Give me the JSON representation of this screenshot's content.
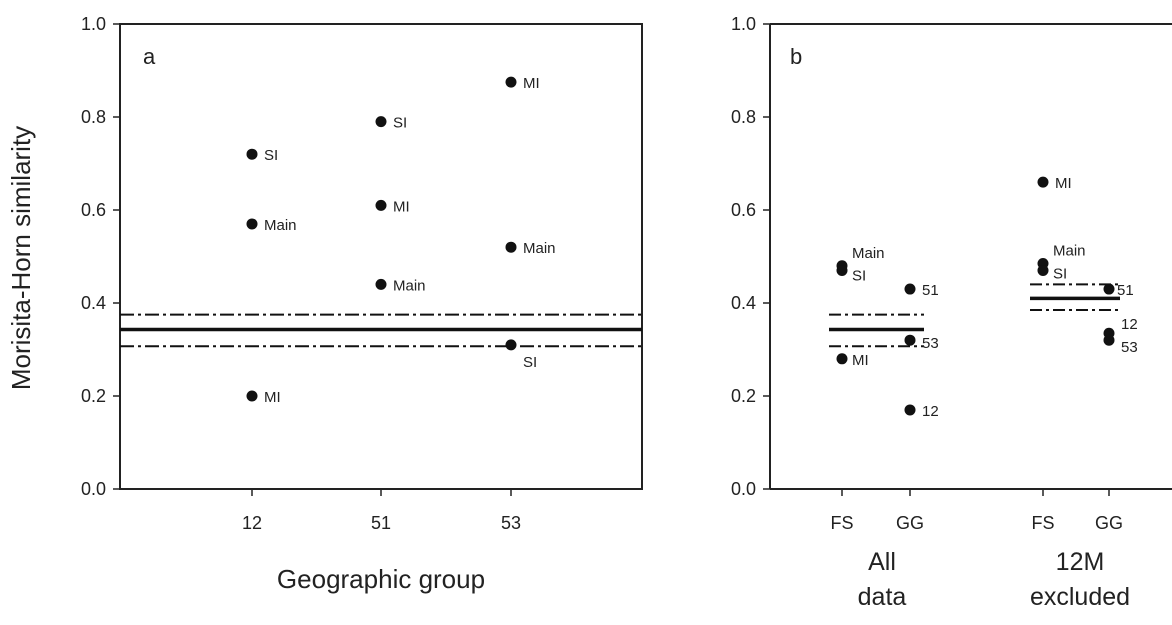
{
  "chart_data": [
    {
      "panel_label": "a",
      "type": "scatter",
      "xlabel": "Geographic group",
      "ylabel": "Morisita-Horn similarity",
      "ylim": [
        0,
        1
      ],
      "yticks": [
        "0.0",
        "0.2",
        "0.4",
        "0.6",
        "0.8",
        "1.0"
      ],
      "categories": [
        "12",
        "51",
        "53"
      ],
      "points": [
        {
          "x": "12",
          "y": 0.72,
          "label": "SI"
        },
        {
          "x": "12",
          "y": 0.57,
          "label": "Main"
        },
        {
          "x": "12",
          "y": 0.2,
          "label": "MI"
        },
        {
          "x": "51",
          "y": 0.79,
          "label": "SI"
        },
        {
          "x": "51",
          "y": 0.61,
          "label": "MI"
        },
        {
          "x": "51",
          "y": 0.44,
          "label": "Main"
        },
        {
          "x": "53",
          "y": 0.875,
          "label": "MI"
        },
        {
          "x": "53",
          "y": 0.52,
          "label": "Main"
        },
        {
          "x": "53",
          "y": 0.31,
          "label": "SI"
        }
      ],
      "reference_lines": {
        "mean": 0.343,
        "lower": 0.307,
        "upper": 0.375
      }
    },
    {
      "panel_label": "b",
      "type": "scatter",
      "ylim": [
        0,
        1
      ],
      "yticks": [
        "0.0",
        "0.2",
        "0.4",
        "0.6",
        "0.8",
        "1.0"
      ],
      "categories": [
        "FS",
        "GG",
        "FS",
        "GG"
      ],
      "group_labels": [
        [
          "All",
          "data"
        ],
        [
          "12M",
          "excluded"
        ]
      ],
      "points": [
        {
          "x": 0,
          "y": 0.48,
          "label": "Main"
        },
        {
          "x": 0,
          "y": 0.47,
          "label": "SI"
        },
        {
          "x": 0,
          "y": 0.28,
          "label": "MI"
        },
        {
          "x": 1,
          "y": 0.43,
          "label": "51"
        },
        {
          "x": 1,
          "y": 0.32,
          "label": "53"
        },
        {
          "x": 1,
          "y": 0.17,
          "label": "12"
        },
        {
          "x": 2,
          "y": 0.66,
          "label": "MI"
        },
        {
          "x": 2,
          "y": 0.485,
          "label": "Main"
        },
        {
          "x": 2,
          "y": 0.47,
          "label": "SI"
        },
        {
          "x": 3,
          "y": 0.43,
          "label": "51"
        },
        {
          "x": 3,
          "y": 0.335,
          "label": "12"
        },
        {
          "x": 3,
          "y": 0.32,
          "label": "53"
        }
      ],
      "reference_lines": [
        {
          "group": 0,
          "mean": 0.343,
          "lower": 0.307,
          "upper": 0.375
        },
        {
          "group": 1,
          "mean": 0.41,
          "lower": 0.385,
          "upper": 0.44
        }
      ]
    }
  ]
}
